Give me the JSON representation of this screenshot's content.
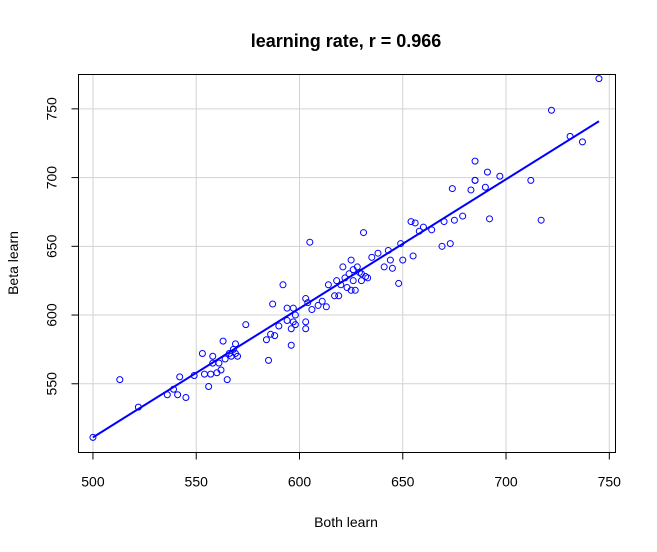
{
  "chart_data": {
    "type": "scatter",
    "title": "learning rate, r = 0.966",
    "xlabel": "Both learn",
    "ylabel": "Beta learn",
    "xlim": [
      493,
      753
    ],
    "ylim": [
      500,
      775
    ],
    "x_ticks": [
      500,
      550,
      600,
      650,
      700,
      750
    ],
    "y_ticks": [
      550,
      600,
      650,
      700,
      750
    ],
    "grid": true,
    "point_color": "#0000ff",
    "line_color": "#0000ff",
    "points": [
      [
        500,
        511
      ],
      [
        513,
        553
      ],
      [
        522,
        533
      ],
      [
        536,
        542
      ],
      [
        539,
        546
      ],
      [
        541,
        542
      ],
      [
        542,
        555
      ],
      [
        545,
        540
      ],
      [
        549,
        556
      ],
      [
        553,
        572
      ],
      [
        554,
        557
      ],
      [
        556,
        548
      ],
      [
        557,
        557
      ],
      [
        558,
        570
      ],
      [
        558,
        565
      ],
      [
        560,
        558
      ],
      [
        561,
        565
      ],
      [
        562,
        560
      ],
      [
        563,
        581
      ],
      [
        564,
        568
      ],
      [
        565,
        553
      ],
      [
        566,
        572
      ],
      [
        567,
        570
      ],
      [
        568,
        575
      ],
      [
        569,
        579
      ],
      [
        569,
        572
      ],
      [
        570,
        570
      ],
      [
        574,
        593
      ],
      [
        584,
        582
      ],
      [
        585,
        567
      ],
      [
        586,
        586
      ],
      [
        587,
        608
      ],
      [
        588,
        585
      ],
      [
        590,
        592
      ],
      [
        592,
        622
      ],
      [
        594,
        605
      ],
      [
        594,
        596
      ],
      [
        596,
        590
      ],
      [
        596,
        578
      ],
      [
        597,
        605
      ],
      [
        597,
        595
      ],
      [
        598,
        600
      ],
      [
        598,
        593
      ],
      [
        603,
        612
      ],
      [
        603,
        590
      ],
      [
        603,
        595
      ],
      [
        604,
        609
      ],
      [
        605,
        653
      ],
      [
        606,
        604
      ],
      [
        609,
        607
      ],
      [
        611,
        610
      ],
      [
        613,
        606
      ],
      [
        614,
        622
      ],
      [
        617,
        614
      ],
      [
        618,
        625
      ],
      [
        619,
        614
      ],
      [
        620,
        622
      ],
      [
        621,
        635
      ],
      [
        622,
        627
      ],
      [
        623,
        620
      ],
      [
        624,
        630
      ],
      [
        625,
        640
      ],
      [
        625,
        618
      ],
      [
        626,
        633
      ],
      [
        626,
        625
      ],
      [
        627,
        618
      ],
      [
        628,
        635
      ],
      [
        629,
        631
      ],
      [
        630,
        630
      ],
      [
        630,
        625
      ],
      [
        631,
        660
      ],
      [
        632,
        628
      ],
      [
        633,
        627
      ],
      [
        635,
        642
      ],
      [
        638,
        645
      ],
      [
        641,
        635
      ],
      [
        643,
        647
      ],
      [
        644,
        640
      ],
      [
        645,
        634
      ],
      [
        648,
        623
      ],
      [
        649,
        652
      ],
      [
        650,
        640
      ],
      [
        654,
        668
      ],
      [
        655,
        643
      ],
      [
        656,
        667
      ],
      [
        658,
        661
      ],
      [
        660,
        664
      ],
      [
        664,
        662
      ],
      [
        669,
        650
      ],
      [
        670,
        668
      ],
      [
        673,
        652
      ],
      [
        674,
        692
      ],
      [
        675,
        669
      ],
      [
        679,
        672
      ],
      [
        683,
        691
      ],
      [
        685,
        712
      ],
      [
        685,
        698
      ],
      [
        685,
        698
      ],
      [
        690,
        693
      ],
      [
        691,
        704
      ],
      [
        692,
        670
      ],
      [
        697,
        701
      ],
      [
        712,
        698
      ],
      [
        717,
        669
      ],
      [
        722,
        749
      ],
      [
        731,
        730
      ],
      [
        737,
        726
      ],
      [
        745,
        772
      ]
    ],
    "fit_line": {
      "x": [
        500,
        745
      ],
      "y": [
        511,
        741
      ]
    }
  }
}
